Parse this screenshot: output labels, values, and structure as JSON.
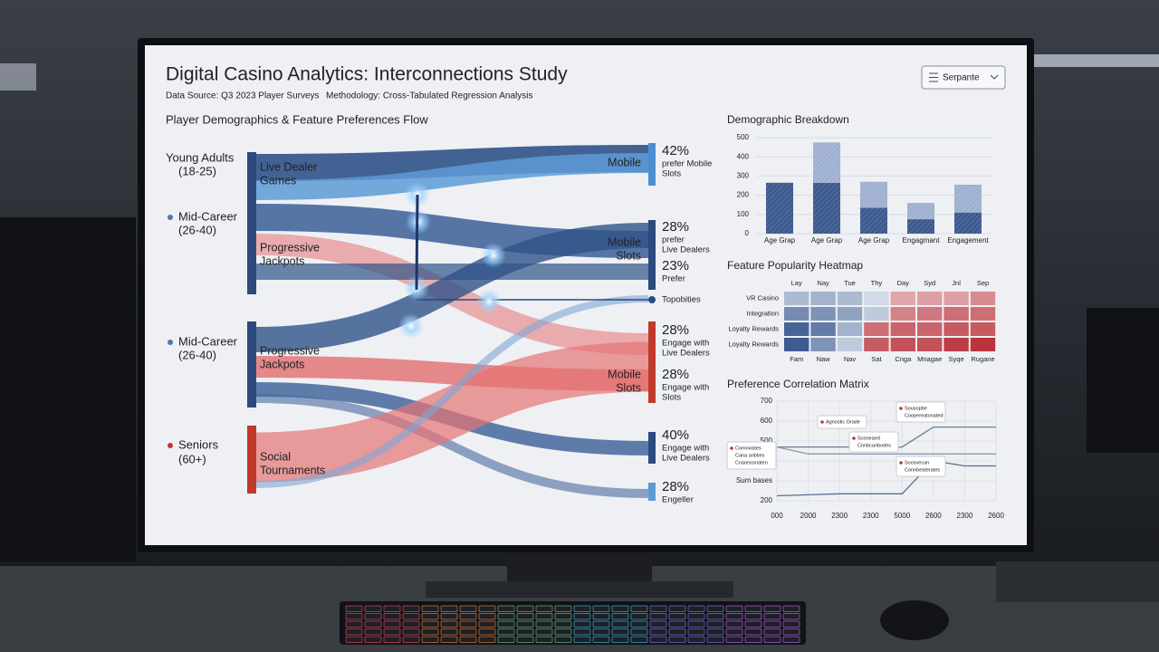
{
  "header": {
    "title": "Digital Casino Analytics: Interconnections Study",
    "source": "Data Source: Q3 2023 Player Surveys",
    "methodology": "Methodology: Cross-Tabulated Regression Analysis"
  },
  "dropdown": {
    "label": "Serpante"
  },
  "sankey": {
    "title": "Player Demographics & Feature Preferences Flow",
    "groups": [
      {
        "name": "Young Adults",
        "range": "(18-25)"
      },
      {
        "name": "Mid-Career",
        "range": "(26-40)"
      },
      {
        "name": "Mid-Career",
        "range": "(26-40)"
      },
      {
        "name": "Seniors",
        "range": "(60+)"
      }
    ],
    "nodes": [
      [
        "Live Dealer",
        "Games"
      ],
      [
        "Progressive",
        "Jackpots"
      ],
      [
        "Progressive",
        "Jackpots"
      ],
      [
        "Social",
        "Tournaments"
      ]
    ],
    "targets": [
      [
        "Mobile"
      ],
      [
        "Mobile",
        "Slots"
      ],
      [
        "Mobile",
        "Slots"
      ]
    ],
    "outcomes": [
      {
        "percent": "42%",
        "text": [
          "prefer Mobile",
          "Slots"
        ]
      },
      {
        "percent": "28%",
        "text": [
          "prefer",
          "Live Dealers"
        ]
      },
      {
        "percent": "23%",
        "text": [
          "Prefer"
        ]
      },
      {
        "percent": "28%",
        "text": [
          "Engage with",
          "Live Dealers"
        ]
      },
      {
        "percent": "28%",
        "text": [
          "Engage with",
          "Slots"
        ]
      },
      {
        "percent": "40%",
        "text": [
          "Engage with",
          "Live Dealers"
        ]
      },
      {
        "percent": "28%",
        "text": [
          "Engeller"
        ]
      }
    ],
    "marker": "Topobities"
  },
  "bar_chart": {
    "title": "Demographic Breakdown",
    "categories": [
      "Age Grap",
      "Age Grap",
      "Age Grap",
      "Engagmant",
      "Engagement"
    ],
    "series": [
      {
        "color": "#3d5a8e",
        "values": [
          265,
          265,
          135,
          75,
          110
        ]
      },
      {
        "color": "#9fb0d0",
        "values": [
          0,
          210,
          135,
          85,
          145
        ]
      }
    ],
    "ylim": [
      0,
      500
    ],
    "yticks": [
      0,
      100,
      200,
      300,
      400,
      500
    ]
  },
  "heatmap": {
    "title": "Feature Popularity Heatmap",
    "columns_top": [
      "Lay",
      "Nay",
      "Tue",
      "Thy",
      "Day",
      "Syd",
      "Jnl",
      "Sep"
    ],
    "columns_bottom": [
      "Fam",
      "Naw",
      "Nav",
      "Sat",
      "Cnga",
      "Mnagae",
      "Syqe",
      "Rugane"
    ],
    "rows": [
      "VR Casino",
      "Integration",
      "Loyalty Rewards",
      "Loyalty Rewards"
    ],
    "values": [
      [
        -0.3,
        -0.35,
        -0.3,
        -0.1,
        0.3,
        0.35,
        0.35,
        0.45
      ],
      [
        -0.6,
        -0.55,
        -0.45,
        -0.2,
        0.5,
        0.55,
        0.6,
        0.6
      ],
      [
        -0.85,
        -0.7,
        -0.35,
        0.6,
        0.65,
        0.65,
        0.7,
        0.7
      ],
      [
        -0.9,
        -0.55,
        -0.2,
        0.7,
        0.75,
        0.75,
        0.85,
        0.9
      ]
    ]
  },
  "line_chart": {
    "title": "Preference Correlation Matrix",
    "categories": [
      "000",
      "2000",
      "2300",
      "2300",
      "5000",
      "2600",
      "2300",
      "2600"
    ],
    "ylim": [
      200,
      700
    ],
    "yticks": [
      200,
      {
        "value": 300,
        "label": "Sum bases"
      },
      400,
      500,
      600,
      700
    ],
    "series": [
      {
        "color": "#6b7f9a",
        "values": [
          470,
          470,
          470,
          470,
          470,
          570,
          570,
          570
        ]
      },
      {
        "color": "#8a9ab0",
        "values": [
          470,
          435,
          435,
          435,
          435,
          435,
          435,
          435
        ]
      },
      {
        "color": "#5a6f8e",
        "values": [
          225,
          230,
          235,
          235,
          235,
          400,
          375,
          375
        ]
      }
    ],
    "annotations": [
      [
        "Agnostic Grade"
      ],
      [
        "Sousopbe",
        "Coopereatonated"
      ],
      [
        "Sconeaed",
        "Cnnbcanbodes"
      ],
      [
        "Comovistes",
        "Cana anbties",
        "Cnaonosnaten"
      ],
      [
        "Soosvecan",
        "Connbeaterates"
      ]
    ]
  }
}
